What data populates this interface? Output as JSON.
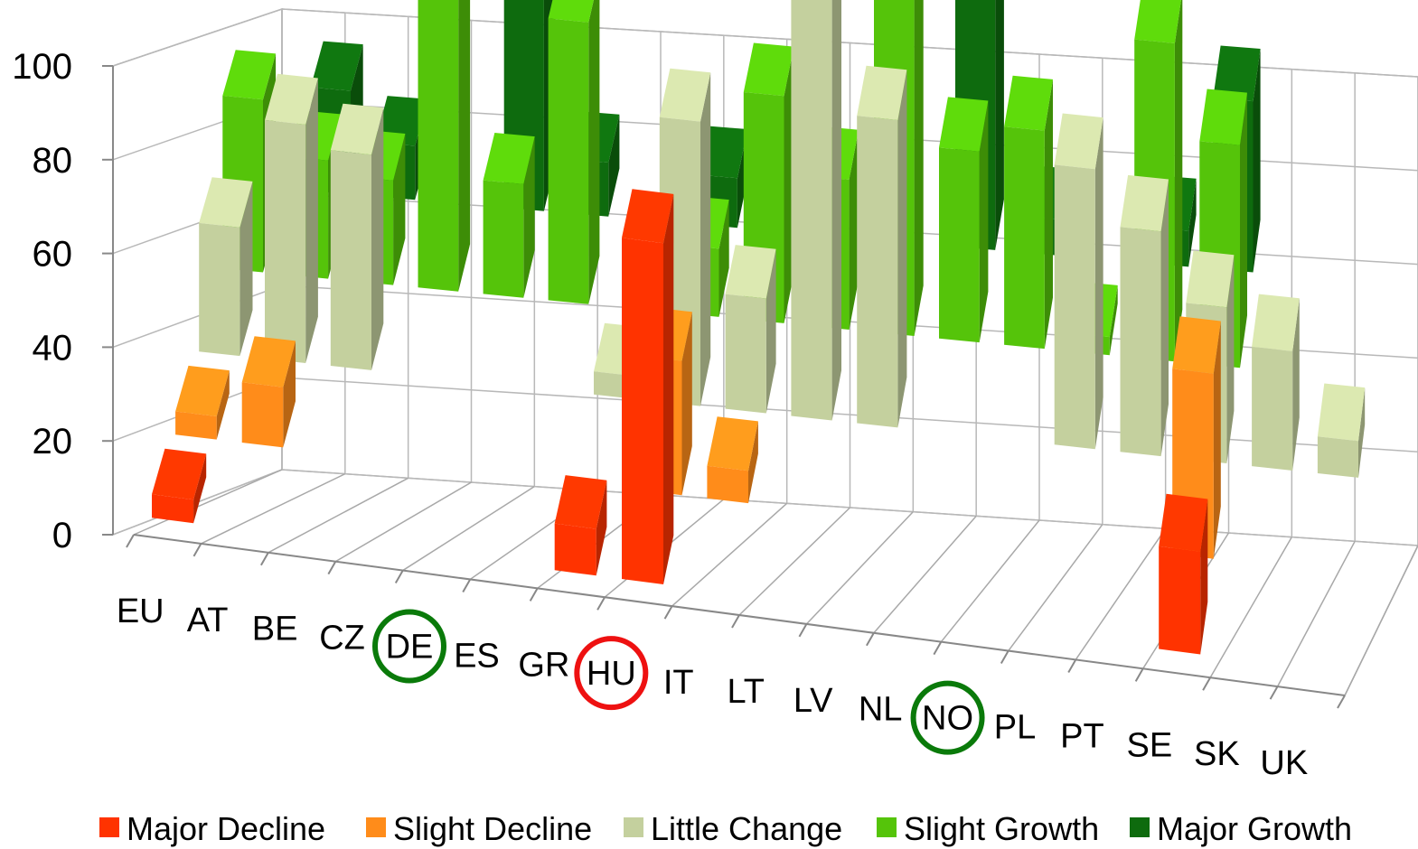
{
  "chart_data": {
    "type": "bar",
    "title": "",
    "xlabel": "",
    "ylabel": "",
    "ylim": [
      0,
      100
    ],
    "yticks": [
      "0",
      "20",
      "40",
      "60",
      "80",
      "100"
    ],
    "grid": true,
    "legend_position": "bottom",
    "categories": [
      "EU",
      "AT",
      "BE",
      "CZ",
      "DE",
      "ES",
      "GR",
      "HU",
      "IT",
      "LT",
      "LV",
      "NL",
      "NO",
      "PL",
      "PT",
      "SE",
      "SK",
      "UK"
    ],
    "series": [
      {
        "name": "Major Decline",
        "color": "#ff3300",
        "values": [
          5,
          0,
          0,
          0,
          0,
          0,
          10,
          73,
          0,
          0,
          0,
          0,
          0,
          0,
          0,
          22,
          0,
          0
        ]
      },
      {
        "name": "Slight Decline",
        "color": "#ff8c1a",
        "values": [
          5,
          13,
          0,
          0,
          0,
          0,
          0,
          29,
          7,
          0,
          0,
          0,
          0,
          0,
          0,
          40,
          0,
          0
        ]
      },
      {
        "name": "Little Change",
        "color": "#c4d09e",
        "values": [
          28,
          52,
          47,
          0,
          0,
          0,
          5,
          62,
          25,
          100,
          67,
          0,
          0,
          61,
          49,
          34,
          26,
          8
        ]
      },
      {
        "name": "Slight Growth",
        "color": "#55c40a",
        "values": [
          38,
          26,
          23,
          82,
          25,
          62,
          0,
          15,
          50,
          33,
          100,
          42,
          48,
          4,
          70,
          49,
          0,
          0
        ]
      },
      {
        "name": "Major Growth",
        "color": "#0e6b0e",
        "values": [
          0,
          23,
          12,
          0,
          73,
          12,
          0,
          11,
          0,
          0,
          0,
          100,
          8,
          0,
          8,
          38,
          0,
          0
        ]
      }
    ],
    "highlighted_categories": [
      {
        "category": "DE",
        "circle_color": "#0a7a0a"
      },
      {
        "category": "HU",
        "circle_color": "#ee1111"
      },
      {
        "category": "NO",
        "circle_color": "#0a7a0a"
      }
    ]
  }
}
